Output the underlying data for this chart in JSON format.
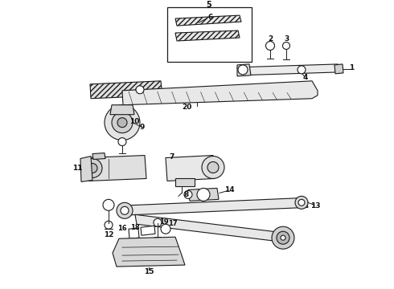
{
  "bg_color": "#ffffff",
  "lc": "#1a1a1a",
  "label_fs": 6.5,
  "fig_w": 4.9,
  "fig_h": 3.6,
  "dpi": 100
}
